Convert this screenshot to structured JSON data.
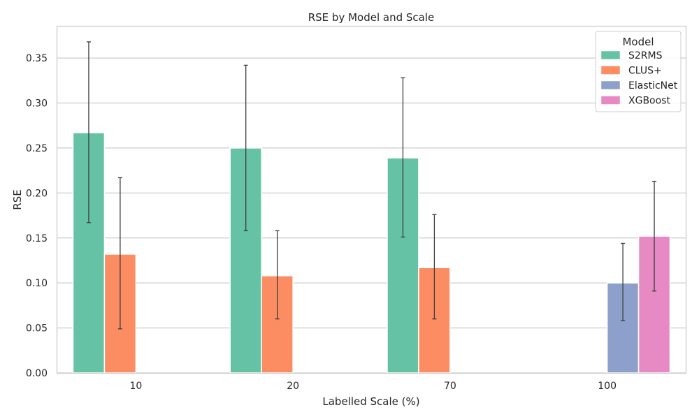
{
  "chart_data": {
    "type": "bar",
    "title": "RSE by Model and Scale",
    "xlabel": "Labelled Scale (%)",
    "ylabel": "RSE",
    "categories": [
      "10",
      "20",
      "70",
      "100"
    ],
    "ylim": [
      0,
      0.385
    ],
    "yticks": [
      "0.00",
      "0.05",
      "0.10",
      "0.15",
      "0.20",
      "0.25",
      "0.30",
      "0.35"
    ],
    "grid": true,
    "legend": {
      "title": "Model",
      "position": "top-right"
    },
    "series": [
      {
        "name": "S2RMS",
        "color": "#66c2a5",
        "values": [
          0.267,
          0.25,
          0.239,
          null
        ],
        "err_low": [
          0.167,
          0.158,
          0.151,
          null
        ],
        "err_high": [
          0.368,
          0.342,
          0.328,
          null
        ]
      },
      {
        "name": "CLUS+",
        "color": "#fc8d62",
        "values": [
          0.132,
          0.108,
          0.117,
          null
        ],
        "err_low": [
          0.049,
          0.06,
          0.06,
          null
        ],
        "err_high": [
          0.217,
          0.158,
          0.176,
          null
        ]
      },
      {
        "name": "ElasticNet",
        "color": "#8da0cb",
        "values": [
          null,
          null,
          null,
          0.1
        ],
        "err_low": [
          null,
          null,
          null,
          0.058
        ],
        "err_high": [
          null,
          null,
          null,
          0.144
        ]
      },
      {
        "name": "XGBoost",
        "color": "#e78ac3",
        "values": [
          null,
          null,
          null,
          0.152
        ],
        "err_low": [
          null,
          null,
          null,
          0.091
        ],
        "err_high": [
          null,
          null,
          null,
          0.213
        ]
      }
    ]
  }
}
